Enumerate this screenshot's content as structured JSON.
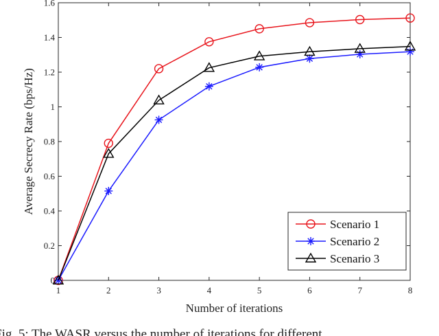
{
  "chart_data": {
    "type": "line",
    "title": "",
    "xlabel": "Number of iterations",
    "ylabel": "Average Secrecy Rate (bps/Hz)",
    "x": [
      1,
      2,
      3,
      4,
      5,
      6,
      7,
      8
    ],
    "xlim": [
      1,
      8
    ],
    "ylim": [
      0,
      1.6
    ],
    "x_ticks": [
      "1",
      "2",
      "3",
      "4",
      "5",
      "6",
      "7",
      "8"
    ],
    "y_ticks": [
      "0",
      "0.2",
      "0.4",
      "0.6",
      "0.8",
      "1",
      "1.2",
      "1.4",
      "1.6"
    ],
    "grid": false,
    "legend_position": "bottom-right",
    "series": [
      {
        "name": "Scenario 1",
        "color": "#e8141b",
        "marker": "circle",
        "values": [
          0.0,
          0.79,
          1.22,
          1.375,
          1.45,
          1.485,
          1.503,
          1.512
        ]
      },
      {
        "name": "Scenario 2",
        "color": "#1a1aff",
        "marker": "asterisk",
        "values": [
          0.0,
          0.515,
          0.925,
          1.118,
          1.228,
          1.278,
          1.303,
          1.318
        ]
      },
      {
        "name": "Scenario 3",
        "color": "#000000",
        "marker": "triangle",
        "values": [
          0.0,
          0.73,
          1.038,
          1.225,
          1.292,
          1.318,
          1.335,
          1.348
        ]
      }
    ]
  },
  "caption": "Fig. 5: The WASR versus the number of iterations for different"
}
